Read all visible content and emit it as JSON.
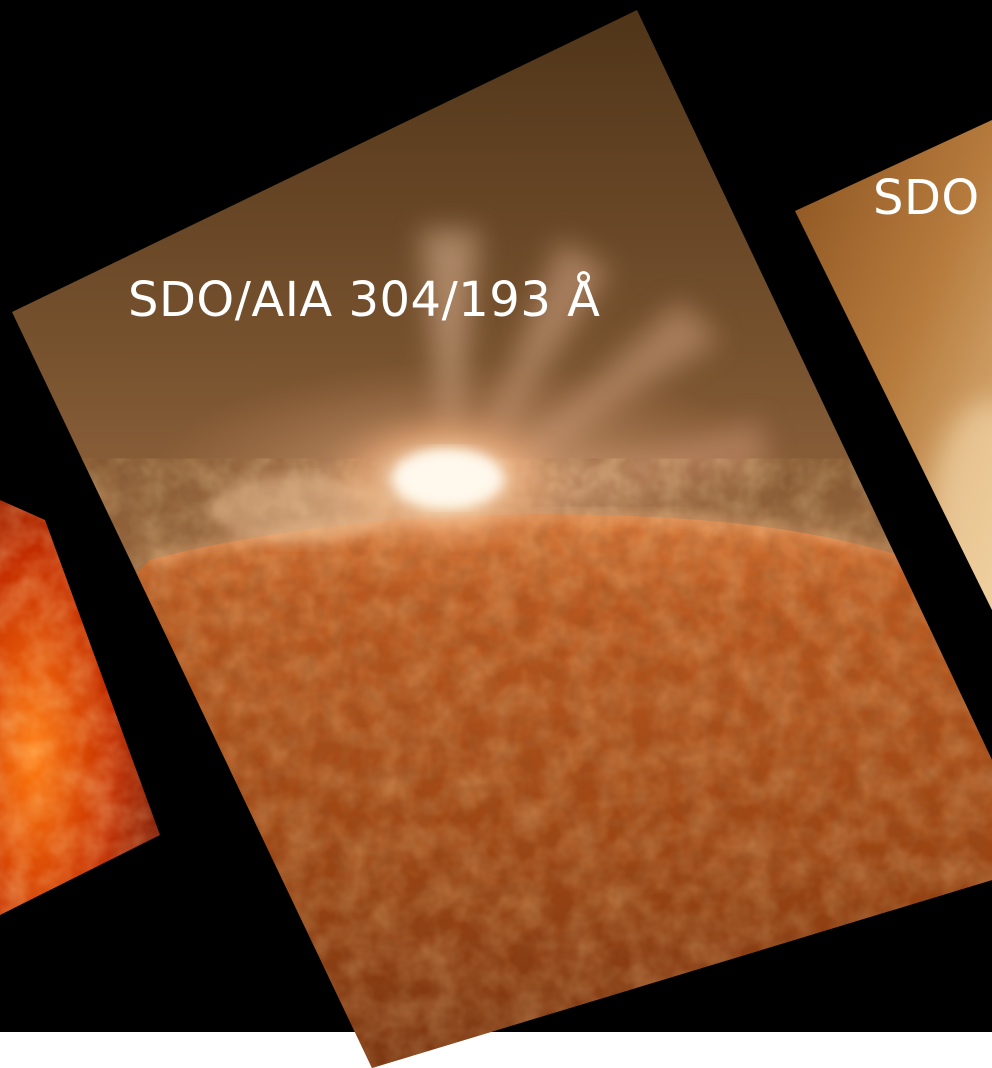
{
  "panels": {
    "center": {
      "label": "SDO/AIA 304/193 Å"
    },
    "right": {
      "label": "SDO"
    }
  },
  "colors": {
    "background": "#000000",
    "strip": "#ffffff",
    "label": "#ffffff",
    "limb": "#b5561f",
    "corona": "#6e4a2a",
    "flare": "#fff3dc",
    "left_panel": "#d13a00"
  }
}
